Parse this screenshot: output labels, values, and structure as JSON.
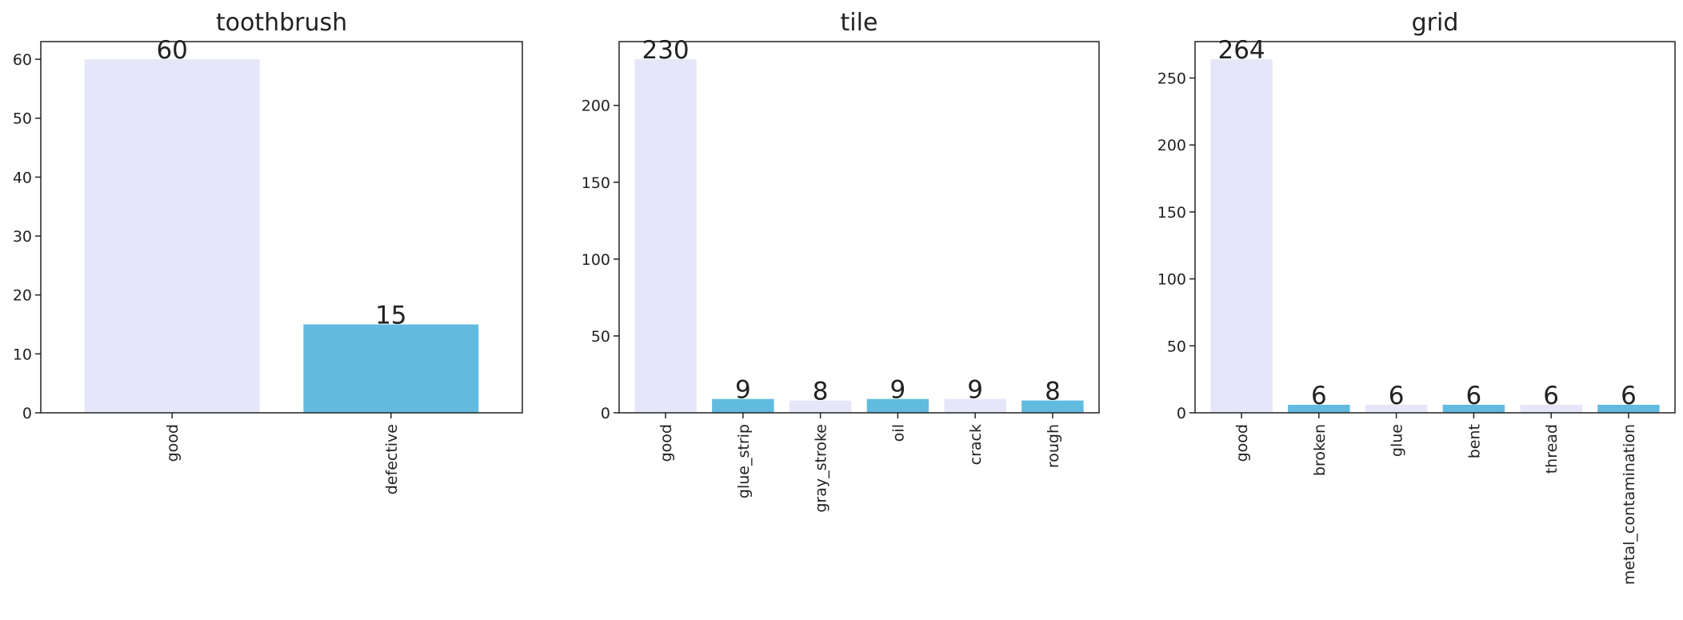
{
  "chart_data": [
    {
      "type": "bar",
      "title": "toothbrush",
      "categories": [
        "good",
        "defective"
      ],
      "values": [
        60,
        15
      ],
      "colors": [
        "#e6e6fa",
        "#61bbdf"
      ],
      "ylim": [
        0,
        63
      ],
      "yticks": [
        0,
        10,
        20,
        30,
        40,
        50,
        60
      ],
      "xlabel": "",
      "ylabel": "",
      "grid": false
    },
    {
      "type": "bar",
      "title": "tile",
      "categories": [
        "good",
        "glue_strip",
        "gray_stroke",
        "oil",
        "crack",
        "rough"
      ],
      "values": [
        230,
        9,
        8,
        9,
        9,
        8
      ],
      "colors": [
        "#e6e6fa",
        "#61bbdf",
        "#e6e6fa",
        "#61bbdf",
        "#e6e6fa",
        "#61bbdf"
      ],
      "ylim": [
        0,
        241.5
      ],
      "yticks": [
        0,
        50,
        100,
        150,
        200
      ],
      "xlabel": "",
      "ylabel": "",
      "grid": false
    },
    {
      "type": "bar",
      "title": "grid",
      "categories": [
        "good",
        "broken",
        "glue",
        "bent",
        "thread",
        "metal_contamination"
      ],
      "values": [
        264,
        6,
        6,
        6,
        6,
        6
      ],
      "colors": [
        "#e6e6fa",
        "#61bbdf",
        "#e6e6fa",
        "#61bbdf",
        "#e6e6fa",
        "#61bbdf"
      ],
      "ylim": [
        0,
        277.2
      ],
      "yticks": [
        0,
        50,
        100,
        150,
        200,
        250
      ],
      "xlabel": "",
      "ylabel": "",
      "grid": false
    }
  ]
}
